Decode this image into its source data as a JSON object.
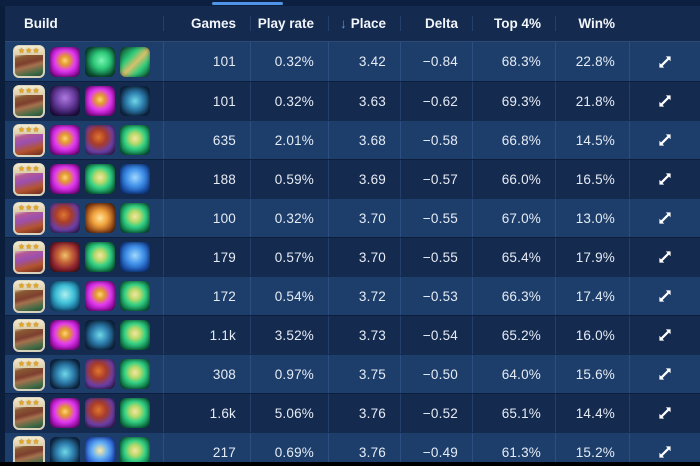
{
  "colors": {
    "accent": "#4f94e8",
    "row_light": "#1d3e6b",
    "row_dark": "#142a4f",
    "header_bg": "#142a4f",
    "top_strip": "#0c1f40",
    "text": "#e6ecf5",
    "star_gold": "#e8a820"
  },
  "table": {
    "sort_icon": "↓",
    "columns": [
      {
        "key": "build",
        "label": "Build"
      },
      {
        "key": "games",
        "label": "Games"
      },
      {
        "key": "play_rate",
        "label": "Play rate"
      },
      {
        "key": "place",
        "label": "Place",
        "sorted_desc": true
      },
      {
        "key": "delta",
        "label": "Delta"
      },
      {
        "key": "top4",
        "label": "Top 4%"
      },
      {
        "key": "win",
        "label": "Win%"
      }
    ],
    "rows": [
      {
        "icons": [
          {
            "type": "champ-redhead",
            "name": "build-champion-icon",
            "stars": "★★★"
          },
          {
            "type": "magenta-fist",
            "name": "build-item-icon"
          },
          {
            "type": "green-dark",
            "name": "build-item-icon"
          },
          {
            "type": "green-rifle",
            "name": "build-item-icon"
          }
        ],
        "games": "101",
        "play_rate": "0.32%",
        "place": "3.42",
        "delta": "−0.84",
        "top4": "68.3%",
        "win": "22.8%"
      },
      {
        "icons": [
          {
            "type": "champ-redhead",
            "name": "build-champion-icon",
            "stars": "★★★"
          },
          {
            "type": "purple-hood",
            "name": "build-item-icon"
          },
          {
            "type": "magenta-fist",
            "name": "build-item-icon"
          },
          {
            "type": "teal-claw",
            "name": "build-item-icon"
          }
        ],
        "games": "101",
        "play_rate": "0.32%",
        "place": "3.63",
        "delta": "−0.62",
        "top4": "69.3%",
        "win": "21.8%"
      },
      {
        "icons": [
          {
            "type": "champ-creature",
            "name": "build-champion-icon",
            "stars": "★★★"
          },
          {
            "type": "magenta-fist",
            "name": "build-item-icon"
          },
          {
            "type": "purple-wizard",
            "name": "build-item-icon"
          },
          {
            "type": "green-gold",
            "name": "build-item-icon"
          }
        ],
        "games": "635",
        "play_rate": "2.01%",
        "place": "3.68",
        "delta": "−0.58",
        "top4": "66.8%",
        "win": "14.5%"
      },
      {
        "icons": [
          {
            "type": "champ-creature",
            "name": "build-champion-icon",
            "stars": "★★★"
          },
          {
            "type": "magenta-fist",
            "name": "build-item-icon"
          },
          {
            "type": "green-gold",
            "name": "build-item-icon"
          },
          {
            "type": "blue-serpent",
            "name": "build-item-icon"
          }
        ],
        "games": "188",
        "play_rate": "0.59%",
        "place": "3.69",
        "delta": "−0.57",
        "top4": "66.0%",
        "win": "16.5%"
      },
      {
        "icons": [
          {
            "type": "champ-creature",
            "name": "build-champion-icon",
            "stars": "★★★"
          },
          {
            "type": "purple-wizard",
            "name": "build-item-icon"
          },
          {
            "type": "orange-sword",
            "name": "build-item-icon"
          },
          {
            "type": "green-gold",
            "name": "build-item-icon"
          }
        ],
        "games": "100",
        "play_rate": "0.32%",
        "place": "3.70",
        "delta": "−0.55",
        "top4": "67.0%",
        "win": "13.0%"
      },
      {
        "icons": [
          {
            "type": "champ-creature",
            "name": "build-champion-icon",
            "stars": "★★★"
          },
          {
            "type": "red-dagger",
            "name": "build-item-icon"
          },
          {
            "type": "green-gold",
            "name": "build-item-icon"
          },
          {
            "type": "blue-serpent",
            "name": "build-item-icon"
          }
        ],
        "games": "179",
        "play_rate": "0.57%",
        "place": "3.70",
        "delta": "−0.55",
        "top4": "65.4%",
        "win": "17.9%"
      },
      {
        "icons": [
          {
            "type": "champ-redhead",
            "name": "build-champion-icon",
            "stars": "★★★"
          },
          {
            "type": "teal-anchor",
            "name": "build-item-icon"
          },
          {
            "type": "magenta-fist",
            "name": "build-item-icon"
          },
          {
            "type": "green-gold",
            "name": "build-item-icon"
          }
        ],
        "games": "172",
        "play_rate": "0.54%",
        "place": "3.72",
        "delta": "−0.53",
        "top4": "66.3%",
        "win": "17.4%"
      },
      {
        "icons": [
          {
            "type": "champ-redhead",
            "name": "build-champion-icon",
            "stars": "★★★"
          },
          {
            "type": "magenta-fist",
            "name": "build-item-icon"
          },
          {
            "type": "teal-claw",
            "name": "build-item-icon"
          },
          {
            "type": "green-gold",
            "name": "build-item-icon"
          }
        ],
        "games": "1.1k",
        "play_rate": "3.52%",
        "place": "3.73",
        "delta": "−0.54",
        "top4": "65.2%",
        "win": "16.0%"
      },
      {
        "icons": [
          {
            "type": "champ-redhead",
            "name": "build-champion-icon",
            "stars": "★★★"
          },
          {
            "type": "teal-claw",
            "name": "build-item-icon"
          },
          {
            "type": "purple-wizard",
            "name": "build-item-icon"
          },
          {
            "type": "green-gold",
            "name": "build-item-icon"
          }
        ],
        "games": "308",
        "play_rate": "0.97%",
        "place": "3.75",
        "delta": "−0.50",
        "top4": "64.0%",
        "win": "15.6%"
      },
      {
        "icons": [
          {
            "type": "champ-redhead",
            "name": "build-champion-icon",
            "stars": "★★★"
          },
          {
            "type": "magenta-fist",
            "name": "build-item-icon"
          },
          {
            "type": "purple-wizard",
            "name": "build-item-icon"
          },
          {
            "type": "green-gold",
            "name": "build-item-icon"
          }
        ],
        "games": "1.6k",
        "play_rate": "5.06%",
        "place": "3.76",
        "delta": "−0.52",
        "top4": "65.1%",
        "win": "14.4%"
      },
      {
        "icons": [
          {
            "type": "champ-redhead",
            "name": "build-champion-icon",
            "stars": "★★★"
          },
          {
            "type": "teal-claw",
            "name": "build-item-icon"
          },
          {
            "type": "blue-fish",
            "name": "build-item-icon"
          },
          {
            "type": "green-gold",
            "name": "build-item-icon"
          }
        ],
        "games": "217",
        "play_rate": "0.69%",
        "place": "3.76",
        "delta": "−0.49",
        "top4": "61.3%",
        "win": "15.2%"
      }
    ]
  }
}
